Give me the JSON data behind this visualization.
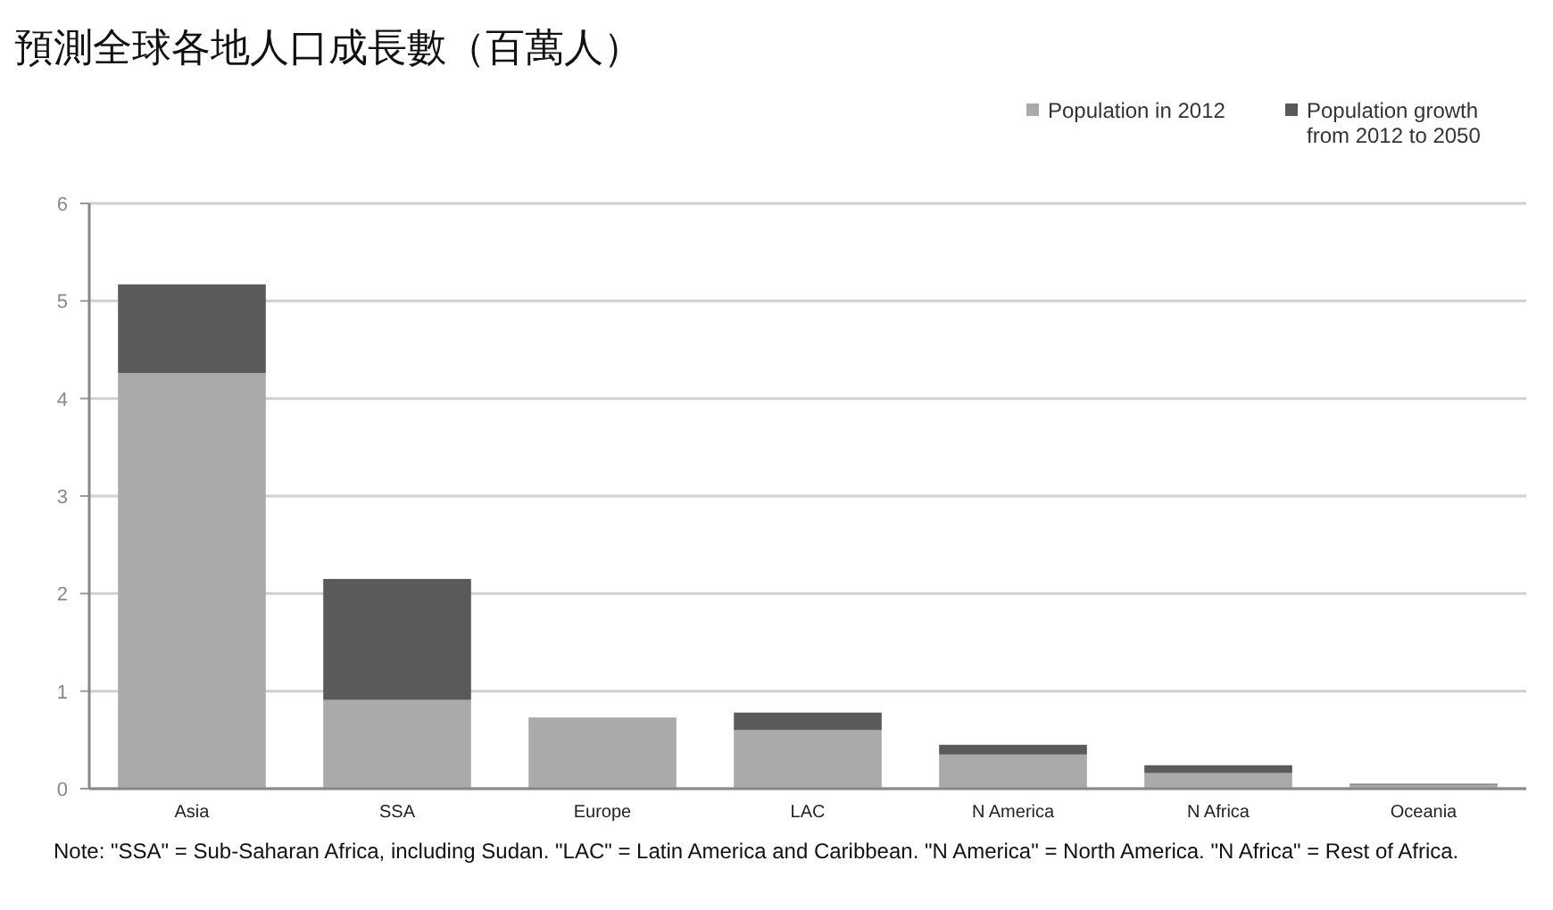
{
  "chart_data": {
    "type": "bar",
    "title": "預測全球各地人口成長數（百萬人）",
    "categories": [
      "Asia",
      "SSA",
      "Europe",
      "LAC",
      "N America",
      "N Africa",
      "Oceania"
    ],
    "stacked": true,
    "series": [
      {
        "name": "Population in 2012",
        "color": "#aaaaaa",
        "values": [
          4.26,
          0.91,
          0.73,
          0.6,
          0.35,
          0.16,
          0.04
        ]
      },
      {
        "name": "Population growth from 2012 to 2050",
        "color": "#5a5a5a",
        "values": [
          0.91,
          1.24,
          0,
          0.18,
          0.1,
          0.08,
          0.01
        ]
      }
    ],
    "ylim": [
      0,
      6
    ],
    "yticks": [
      0,
      1,
      2,
      3,
      4,
      5,
      6
    ],
    "grid": "y",
    "legend": "top right",
    "annotations": [
      "Note: \"SSA\" = Sub-Saharan Africa, including Sudan. \"LAC\" = Latin America and Caribbean. \"N America\" = North America. \"N Africa\" = Rest of Africa."
    ]
  }
}
